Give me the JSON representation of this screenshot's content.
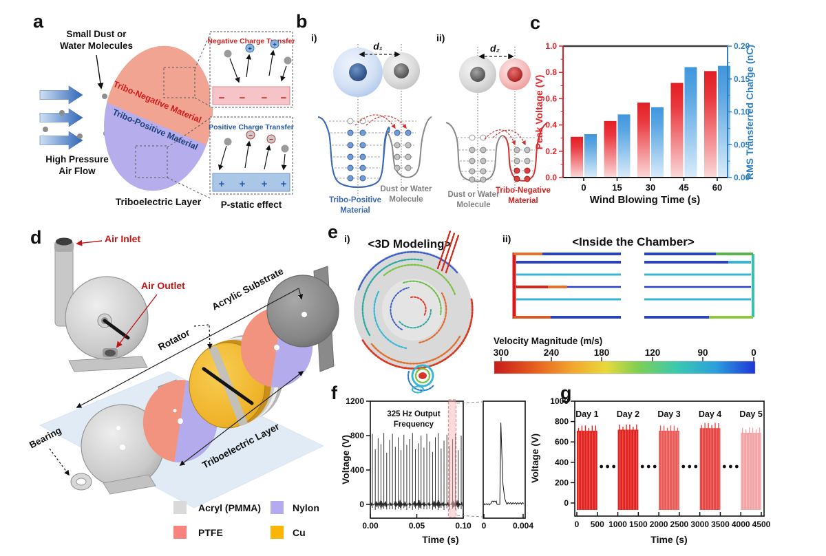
{
  "panel_a": {
    "letter": "a",
    "dust_line1": "Small Dust or",
    "dust_line2": "Water Molecules",
    "airflow_line1": "High Pressure",
    "airflow_line2": "Air Flow",
    "tribo_negative_label": "Tribo-Negative Material",
    "tribo_positive_label": "Tribo-Positive Material",
    "layer_caption": "Triboelectric Layer",
    "inset_negative": {
      "title": "Negative Charge Transfer",
      "sign": "−"
    },
    "inset_positive": {
      "title": "Positive Charge Transfer",
      "sign": "+"
    },
    "pstatic_caption": "P-static effect",
    "colors": {
      "tribo_negative_fill": "#f2a492",
      "tribo_positive_fill": "#b6aeec",
      "negative_bar_fill": "#f6c3c8",
      "positive_bar_fill": "#aac7e8"
    }
  },
  "panel_b": {
    "letter": "b",
    "i_label": "i)",
    "ii_label": "ii)",
    "d1_label": "d₁",
    "d2_label": "d₂",
    "i_left_line1": "Tribo-Positive",
    "i_left_line2": "Material",
    "i_right_line1": "Dust or Water",
    "i_right_line2": "Molecule",
    "ii_left_line1": "Dust or Water",
    "ii_left_line2": "Molecule",
    "ii_right_line1": "Tribo-Negative",
    "ii_right_line2": "Material"
  },
  "panel_c": {
    "letter": "c"
  },
  "panel_d": {
    "letter": "d",
    "air_inlet_label": "Air Inlet",
    "air_outlet_label": "Air Outlet",
    "rotator_label": "Rotator",
    "acrylic_substrate_label": "Acrylic Substrate",
    "bearing_label": "Bearing",
    "triboelectric_layer_label": "Triboelectric Layer",
    "legend": [
      {
        "label": "Acryl (PMMA)",
        "color": "#d9d9d9"
      },
      {
        "label": "PTFE",
        "color": "#f8837e"
      },
      {
        "label": "Nylon",
        "color": "#b3aaf0"
      },
      {
        "label": "Cu",
        "color": "#fbb605"
      }
    ]
  },
  "panel_e": {
    "letter": "e",
    "i_label": "i)",
    "ii_label": "ii)",
    "modeling_title": "<3D Modeling>",
    "chamber_title": "<Inside the Chamber>",
    "colorbar": {
      "title": "Velocity Magnitude (m/s)",
      "ticks": [
        "300",
        "240",
        "180",
        "120",
        "90",
        "0"
      ],
      "gradient": [
        "#c81b1b",
        "#e65c1f",
        "#f2a62e",
        "#e8d93c",
        "#7fcf52",
        "#3ac9b0",
        "#2b9fdc",
        "#1f35d8"
      ]
    }
  },
  "panel_f": {
    "letter": "f"
  },
  "panel_g": {
    "letter": "g"
  },
  "chart_data": [
    {
      "id": "c",
      "type": "bar",
      "categories": [
        "0",
        "15",
        "30",
        "45",
        "60"
      ],
      "xlabel": "Wind Blowing Time (s)",
      "x_ticks": [
        "0",
        "15",
        "30",
        "45",
        "60"
      ],
      "series": [
        {
          "name": "Peak Voltage (V)",
          "axis": "left",
          "values": [
            0.31,
            0.43,
            0.57,
            0.72,
            0.81
          ],
          "color": "#e31e25",
          "color_fade": "#fbd9da"
        },
        {
          "name": "RMS Transferred Charge (nC)",
          "axis": "right",
          "values": [
            0.066,
            0.096,
            0.107,
            0.168,
            0.17
          ],
          "color": "#3f97dd",
          "color_fade": "#d9ecfa"
        }
      ],
      "left_axis": {
        "label": "Peak Voltage (V)",
        "ticks": [
          "0.0",
          "0.2",
          "0.4",
          "0.6",
          "0.8",
          "1.0"
        ],
        "range": [
          0,
          1.0
        ],
        "color": "#e32128"
      },
      "right_axis": {
        "label": "RMS Transferred Charge (nC)",
        "ticks": [
          "0.00",
          "0.05",
          "0.10",
          "0.15",
          "0.20"
        ],
        "range": [
          0,
          0.2
        ],
        "color": "#2e7fc2"
      }
    },
    {
      "id": "f",
      "type": "line",
      "annotation_line1": "325 Hz Output",
      "annotation_line2": "Frequency",
      "xlabel": "Time (s)",
      "ylabel": "Voltage (V)",
      "x_range": [
        0,
        0.1
      ],
      "x_ticks": [
        "0.00",
        "0.05",
        "0.10"
      ],
      "y_range": [
        0,
        1200
      ],
      "y_ticks": [
        "0",
        "400",
        "800",
        "1200"
      ],
      "spike_peaks_v": [
        820,
        640,
        770,
        700,
        830,
        600,
        750,
        820,
        670,
        780,
        630,
        810,
        690,
        760,
        830,
        640,
        710,
        800,
        660,
        820,
        730,
        610,
        780,
        830,
        650,
        740,
        810,
        680,
        760,
        820,
        630,
        800
      ],
      "inset": {
        "x_ticks": [
          "0",
          "0.004"
        ],
        "peak_v": 950,
        "peak_x_frac": 0.42
      }
    },
    {
      "id": "g",
      "type": "interval-bars",
      "xlabel": "Time (s)",
      "ylabel": "Voltage (V)",
      "x_range": [
        0,
        4500
      ],
      "x_ticks": [
        "0",
        "500",
        "1000",
        "1500",
        "2000",
        "2500",
        "3000",
        "3500",
        "4000",
        "4500"
      ],
      "y_range": [
        0,
        1000
      ],
      "y_ticks": [
        "0",
        "200",
        "400",
        "600",
        "800",
        "1000"
      ],
      "blocks": [
        {
          "label": "Day 1",
          "start_s": 0,
          "end_s": 500,
          "peak_v": 710,
          "color": "#e2231f"
        },
        {
          "label": "Day 2",
          "start_s": 1000,
          "end_s": 1500,
          "peak_v": 720,
          "color": "#e2231f"
        },
        {
          "label": "Day 3",
          "start_s": 2000,
          "end_s": 2500,
          "peak_v": 710,
          "color": "#ea5a57"
        },
        {
          "label": "Day 4",
          "start_s": 3000,
          "end_s": 3500,
          "peak_v": 735,
          "color": "#e64543"
        },
        {
          "label": "Day 5",
          "start_s": 4000,
          "end_s": 4500,
          "peak_v": 690,
          "color": "#f2a4a6"
        }
      ]
    }
  ]
}
